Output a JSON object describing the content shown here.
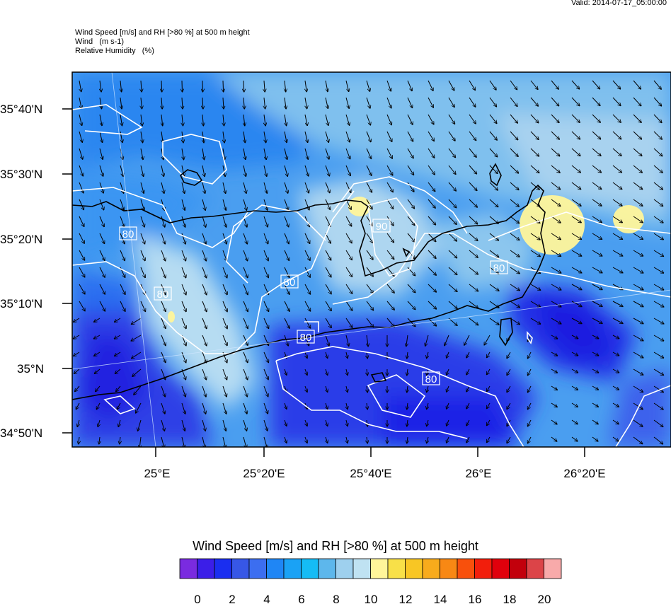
{
  "header": {
    "valid": "Valid: 2014-07-17_05:00:00",
    "line1": "Wind Speed [m/s] and RH [>80 %] at 500 m height",
    "line2": "Wind   (m s-1)",
    "line3": "Relative Humidity   (%)"
  },
  "axes": {
    "lat_labels": [
      "35°40'N",
      "35°30'N",
      "35°20'N",
      "35°10'N",
      "35°N",
      "34°50'N"
    ],
    "lon_labels": [
      "25°E",
      "25°20'E",
      "25°40'E",
      "26°E",
      "26°20'E"
    ]
  },
  "contour_labels": [
    "80",
    "80",
    "80",
    "80",
    "80",
    "90",
    "80"
  ],
  "colorbar": {
    "title": "Wind Speed [m/s] and RH [>80 %] at 500 m height",
    "tick_labels": [
      "0",
      "2",
      "4",
      "6",
      "8",
      "10",
      "12",
      "14",
      "16",
      "18",
      "20"
    ],
    "colors": [
      "#7a2be0",
      "#3b1ee8",
      "#1a2ef0",
      "#3757e6",
      "#3c6ef0",
      "#1f86f5",
      "#1aa2f5",
      "#15bcf5",
      "#5db7ec",
      "#9ed0ee",
      "#bfe2f2",
      "#fff59a",
      "#f8e048",
      "#f8c624",
      "#f8ab1c",
      "#f88814",
      "#f8500c",
      "#f21e0c",
      "#e0000c",
      "#c2000c",
      "#dc4448",
      "#f8aaaa"
    ]
  },
  "wind": {
    "direction": "from northwest, toward south-southeast",
    "speed_range_ms": [
      0,
      12
    ]
  }
}
